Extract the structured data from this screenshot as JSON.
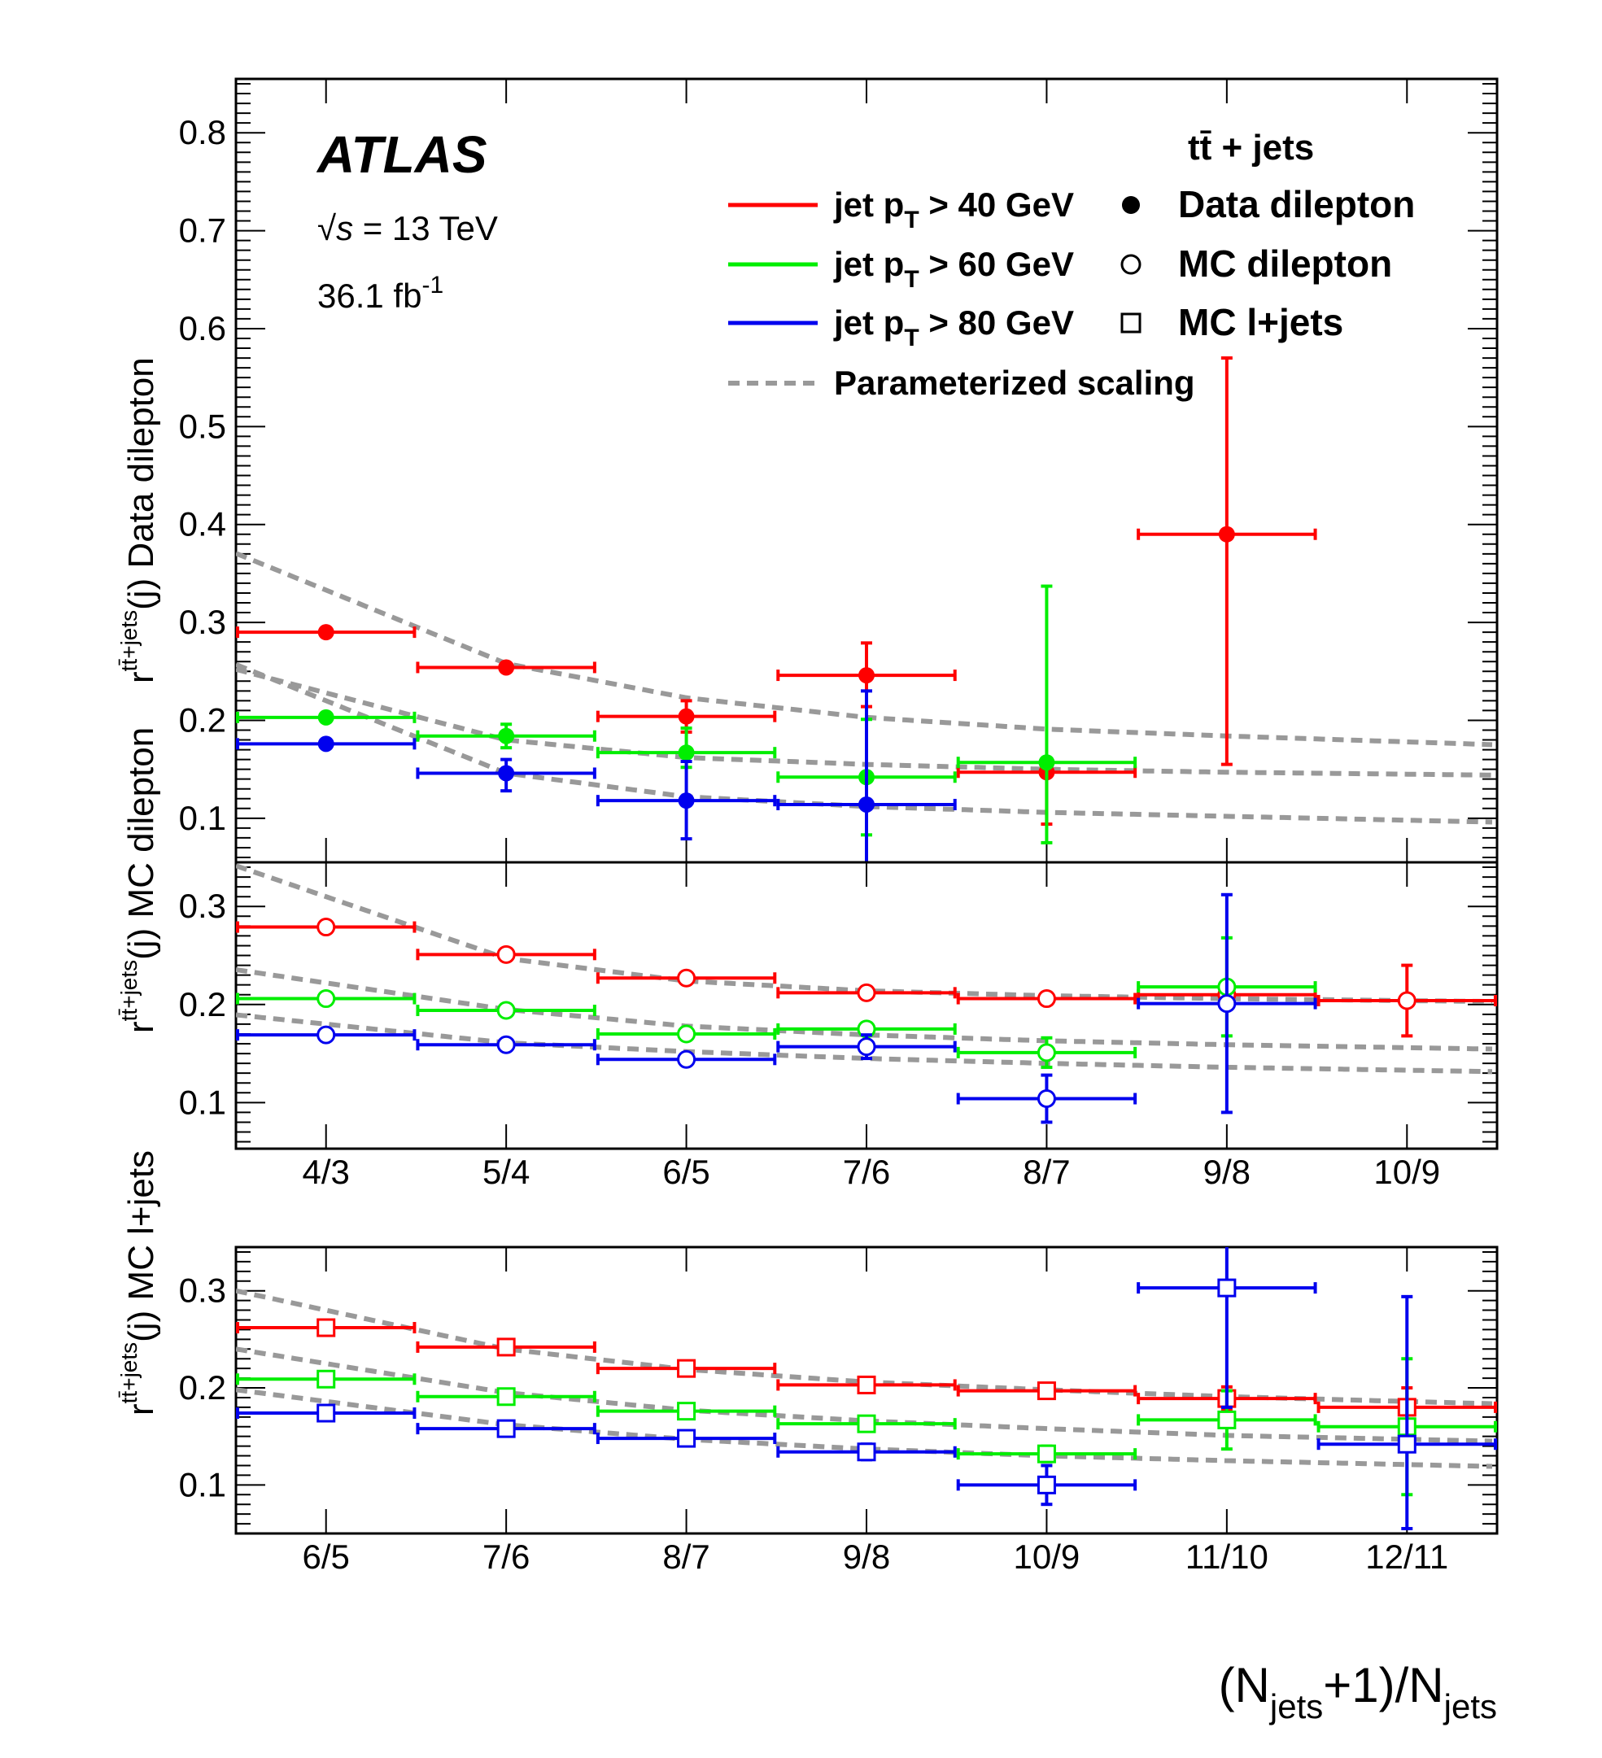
{
  "chart_data": {
    "type": "scatter",
    "experiment": "ATLAS",
    "energy": "= 13 TeV",
    "energy_symbol": "s",
    "lumi": "36.1 fb",
    "lumi_exp": "-1",
    "process": "tt̄ + jets",
    "xlabel": "(N_jets+1)/N_jets",
    "colors": {
      "pt40": "#ff0000",
      "pt60": "#00ee00",
      "pt80": "#0000ee",
      "scaling": "#999999"
    },
    "legend": {
      "lines": [
        {
          "key": "pt40",
          "label": "jet p_T > 40 GeV"
        },
        {
          "key": "pt60",
          "label": "jet p_T > 60 GeV"
        },
        {
          "key": "pt80",
          "label": "jet p_T > 80 GeV"
        },
        {
          "key": "scaling",
          "label": "Parameterized scaling"
        }
      ],
      "markers": [
        {
          "marker": "filled-circle",
          "label": "Data dilepton"
        },
        {
          "marker": "open-circle",
          "label": "MC dilepton"
        },
        {
          "marker": "open-square",
          "label": "MC l+jets"
        }
      ]
    },
    "panels": [
      {
        "id": "data-dilepton",
        "ylabel": "r^{tt̄+jets}(j) Data dilepton",
        "ylabel_text": "(j) Data dilepton",
        "ylim": [
          0.055,
          0.855
        ],
        "yticks": [
          "0.1",
          "0.2",
          "0.3",
          "0.4",
          "0.5",
          "0.6",
          "0.7",
          "0.8"
        ],
        "yticks_values": [
          0.1,
          0.2,
          0.3,
          0.4,
          0.5,
          0.6,
          0.7,
          0.8
        ],
        "categories": [
          "4/3",
          "5/4",
          "6/5",
          "7/6",
          "8/7",
          "9/8",
          "10/9"
        ],
        "show_tick_labels": false,
        "marker": "filled-circle",
        "series": [
          {
            "name": "jet pT > 40 GeV",
            "key": "pt40",
            "values": [
              0.29,
              0.254,
              0.204,
              0.246,
              0.147,
              0.39
            ],
            "err_lo": [
              0.29,
              0.254,
              0.188,
              0.214,
              0.094,
              0.155
            ],
            "err_hi": [
              0.29,
              0.254,
              0.22,
              0.279,
              0.147,
              0.57
            ]
          },
          {
            "name": "jet pT > 60 GeV",
            "key": "pt60",
            "values": [
              0.203,
              0.184,
              0.167,
              0.142,
              0.157
            ],
            "err_lo": [
              0.203,
              0.172,
              0.152,
              0.083,
              0.075
            ],
            "err_hi": [
              0.203,
              0.196,
              0.192,
              0.201,
              0.337
            ]
          },
          {
            "name": "jet pT > 80 GeV",
            "key": "pt80",
            "values": [
              0.176,
              0.146,
              0.118,
              0.114
            ],
            "err_lo": [
              0.176,
              0.128,
              0.079,
              0.055
            ],
            "err_hi": [
              0.176,
              0.16,
              0.158,
              0.23
            ]
          }
        ],
        "scaling": [
          [
            0.333,
            0.258,
            0.223,
            0.203,
            0.191,
            0.184,
            0.178
          ],
          [
            0.228,
            0.18,
            0.162,
            0.155,
            0.15,
            0.147,
            0.145
          ],
          [
            0.22,
            0.146,
            0.122,
            0.112,
            0.106,
            0.102,
            0.098
          ]
        ]
      },
      {
        "id": "mc-dilepton",
        "ylabel": "r^{tt̄+jets}(j) MC dilepton",
        "ylabel_text": "(j) MC dilepton",
        "ylim": [
          0.053,
          0.345
        ],
        "yticks": [
          "0.1",
          "0.2",
          "0.3"
        ],
        "yticks_values": [
          0.1,
          0.2,
          0.3
        ],
        "categories": [
          "4/3",
          "5/4",
          "6/5",
          "7/6",
          "8/7",
          "9/8",
          "10/9"
        ],
        "show_tick_labels": true,
        "marker": "open-circle",
        "series": [
          {
            "name": "jet pT > 40 GeV",
            "key": "pt40",
            "values": [
              0.279,
              0.251,
              0.227,
              0.212,
              0.206,
              0.21,
              0.204
            ],
            "err_lo": [
              0.279,
              0.251,
              0.227,
              0.212,
              0.2,
              0.204,
              0.168
            ],
            "err_hi": [
              0.279,
              0.251,
              0.227,
              0.212,
              0.212,
              0.216,
              0.24
            ]
          },
          {
            "name": "jet pT > 60 GeV",
            "key": "pt60",
            "values": [
              0.206,
              0.194,
              0.17,
              0.175,
              0.151,
              0.218
            ],
            "err_lo": [
              0.206,
              0.194,
              0.17,
              0.175,
              0.136,
              0.168
            ],
            "err_hi": [
              0.206,
              0.194,
              0.17,
              0.175,
              0.166,
              0.268
            ]
          },
          {
            "name": "jet pT > 80 GeV",
            "key": "pt80",
            "values": [
              0.169,
              0.159,
              0.144,
              0.157,
              0.104,
              0.201
            ],
            "err_lo": [
              0.169,
              0.159,
              0.144,
              0.145,
              0.08,
              0.09
            ],
            "err_hi": [
              0.169,
              0.159,
              0.144,
              0.169,
              0.128,
              0.312
            ]
          }
        ],
        "scaling": [
          [
            0.31,
            0.247,
            0.224,
            0.214,
            0.209,
            0.206,
            0.204
          ],
          [
            0.222,
            0.195,
            0.178,
            0.169,
            0.163,
            0.159,
            0.156
          ],
          [
            0.18,
            0.161,
            0.152,
            0.145,
            0.14,
            0.136,
            0.133
          ]
        ]
      },
      {
        "id": "mc-ljets",
        "ylabel": "r^{tt̄+jets}(j) MC l+jets",
        "ylabel_text": "(j) MC l+jets",
        "ylim": [
          0.05,
          0.345
        ],
        "yticks": [
          "0.1",
          "0.2",
          "0.3"
        ],
        "yticks_values": [
          0.1,
          0.2,
          0.3
        ],
        "categories": [
          "6/5",
          "7/6",
          "8/7",
          "9/8",
          "10/9",
          "11/10",
          "12/11"
        ],
        "show_tick_labels": true,
        "marker": "open-square",
        "series": [
          {
            "name": "jet pT > 40 GeV",
            "key": "pt40",
            "values": [
              0.262,
              0.242,
              0.22,
              0.203,
              0.197,
              0.189,
              0.18
            ],
            "err_lo": [
              0.262,
              0.242,
              0.22,
              0.203,
              0.197,
              0.177,
              0.16
            ],
            "err_hi": [
              0.262,
              0.242,
              0.22,
              0.203,
              0.197,
              0.201,
              0.2
            ]
          },
          {
            "name": "jet pT > 60 GeV",
            "key": "pt60",
            "values": [
              0.209,
              0.191,
              0.176,
              0.163,
              0.132,
              0.167,
              0.16
            ],
            "err_lo": [
              0.209,
              0.191,
              0.176,
              0.163,
              0.124,
              0.137,
              0.09
            ],
            "err_hi": [
              0.209,
              0.191,
              0.176,
              0.163,
              0.14,
              0.197,
              0.23
            ]
          },
          {
            "name": "jet pT > 80 GeV",
            "key": "pt80",
            "values": [
              0.174,
              0.158,
              0.148,
              0.134,
              0.1,
              0.303,
              0.142
            ],
            "err_lo": [
              0.174,
              0.158,
              0.148,
              0.126,
              0.08,
              0.18,
              0.055
            ],
            "err_hi": [
              0.174,
              0.158,
              0.148,
              0.142,
              0.12,
              0.345,
              0.294
            ]
          }
        ],
        "scaling": [
          [
            0.28,
            0.24,
            0.219,
            0.206,
            0.198,
            0.191,
            0.186
          ],
          [
            0.225,
            0.195,
            0.177,
            0.166,
            0.158,
            0.151,
            0.147
          ],
          [
            0.186,
            0.162,
            0.147,
            0.137,
            0.13,
            0.125,
            0.121
          ]
        ]
      }
    ]
  }
}
